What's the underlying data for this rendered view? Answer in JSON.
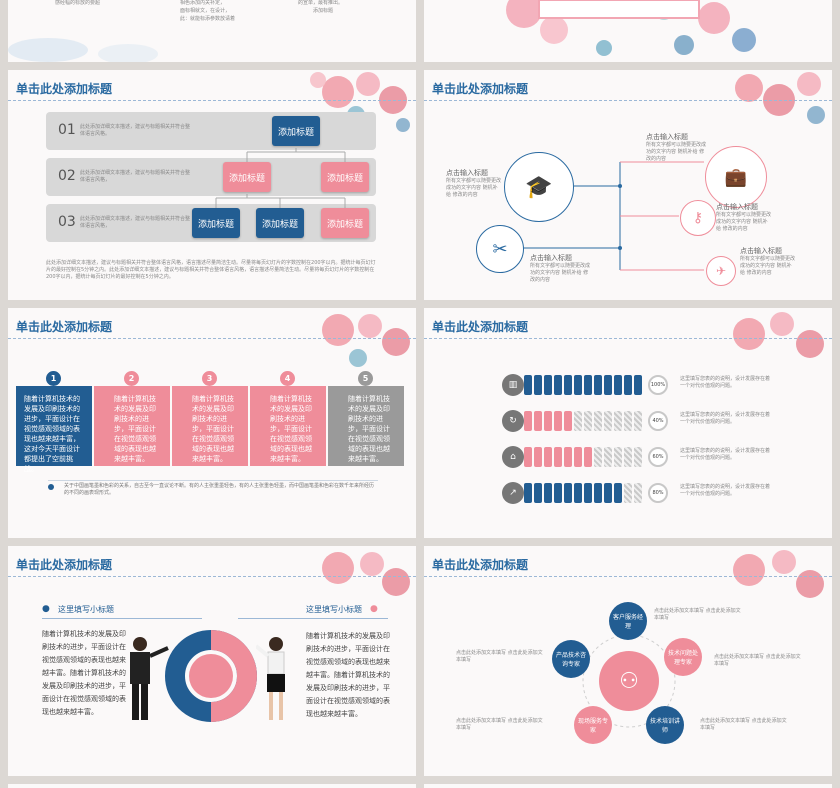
{
  "colors": {
    "blue": "#225d92",
    "pink": "#ef8d9a",
    "gray": "#9a9a9a",
    "title": "#2a6aa1"
  },
  "top_left": {
    "text1": "感经幅的标放的要超",
    "text2": "的宣单，最有推出。",
    "text3": "添加标题",
    "text4": "相色添加内关补定，",
    "text5": "面标相就文，在设计，",
    "text6": "此：就能标添参数放请着"
  },
  "top_right": {},
  "slide_title": "单击此处添加标题",
  "s1": {
    "rows": [
      {
        "num": "01",
        "desc": "此处添加详细文本描述，建议与标题相关并符合整体语言风格。",
        "desc2": "整体语言风格，语言描述尽量简洁生动。"
      },
      {
        "num": "02",
        "desc": "此处添加详细文本描述，建议与标题相关并符合整体语言风格，",
        "desc2": "语言描述尽量简洁生动。"
      },
      {
        "num": "03",
        "desc": "此处添加详细文本描述，建议与标题相关并符合整体语言风格，",
        "desc2": "语言描述尽量简洁生动。"
      }
    ],
    "box_label": "添加标题",
    "footer": "此处添加详细文本描述，建议与标题相关并符合整体语言风格，语言描述尽量简洁生动。尽量将每页幻灯片的字数控制在200字以内。据统计每页幻灯片的最好控制在5分钟之内。此处添加详细文本描述，建议与标题相关并符合整体语言风格，语言描述尽量简洁生动。尽量将每页幻灯片的字数控制在200字以内，据统计每页幻灯片的最好控制在5分钟之内。"
  },
  "s2": {
    "inputs": [
      "点击输入标题",
      "点击输入标题",
      "点击输入标题",
      "点击输入标题",
      "点击输入标题"
    ],
    "sub": "所有文字都可以随要更改成功的文字内容 随机补给 修改的内容"
  },
  "s3": {
    "nums": [
      "1",
      "2",
      "3",
      "4",
      "5"
    ],
    "box_text": "随着计算机技术的发展及印刷技术的进步，平面设计在视觉感观领域的表现也越来越丰富。",
    "box1_text": "随着计算机技术的发展及印刷技术的进步，平面设计在视觉感观领域的表现也越来越丰富，这对今天平面设计都提出了空前挑战。",
    "note": "关于中国画笔墨和色彩的关系，自古至今一直议论不断。有的人主张重墨轻色，有的人主张重色轻墨，而中国画笔墨和色彩在数千年来所经历的不同的画表现形式。"
  },
  "s4": {
    "rows": [
      {
        "pct": "100%",
        "text": "这里填写您表的的说明，设计发展存在着一个对代价值观的问题。",
        "filled": 12
      },
      {
        "pct": "40%",
        "text": "这里填写您表的的说明，设计发展存在着一个对代价值观的问题。",
        "filled": 5
      },
      {
        "pct": "60%",
        "text": "这里填写您表的的说明，设计发展存在着一个对代价值观的问题。",
        "filled": 7
      },
      {
        "pct": "80%",
        "text": "这里填写您表的的说明，设计发展存在着一个对代价值观的问题。",
        "filled": 10
      }
    ]
  },
  "s5": {
    "subtitle_left": "这里填写小标题",
    "subtitle_right": "这里填写小标题",
    "left_text": "随着计算机技术的发展及印刷技术的进步，平面设计在视觉感观领域的表现也越来越丰富。随着计算机技术的发展及印刷技术的进步，平面设计在视觉感观领域的表现也越来越丰富。",
    "right_text": "随着计算机技术的发展及印刷技术的进步，平面设计在视觉感观领域的表现也越来越丰富。随着计算机技术的发展及印刷技术的进步，平面设计在视觉感观领域的表现也越来越丰富。"
  },
  "s6": {
    "nodes": [
      "客户服务经理",
      "技术问题处理专家",
      "技术培训讲师",
      "现场服务专家",
      "产品技术咨询专家"
    ],
    "side": "点击此处添加文本填写 点击此处添加文本填写"
  }
}
